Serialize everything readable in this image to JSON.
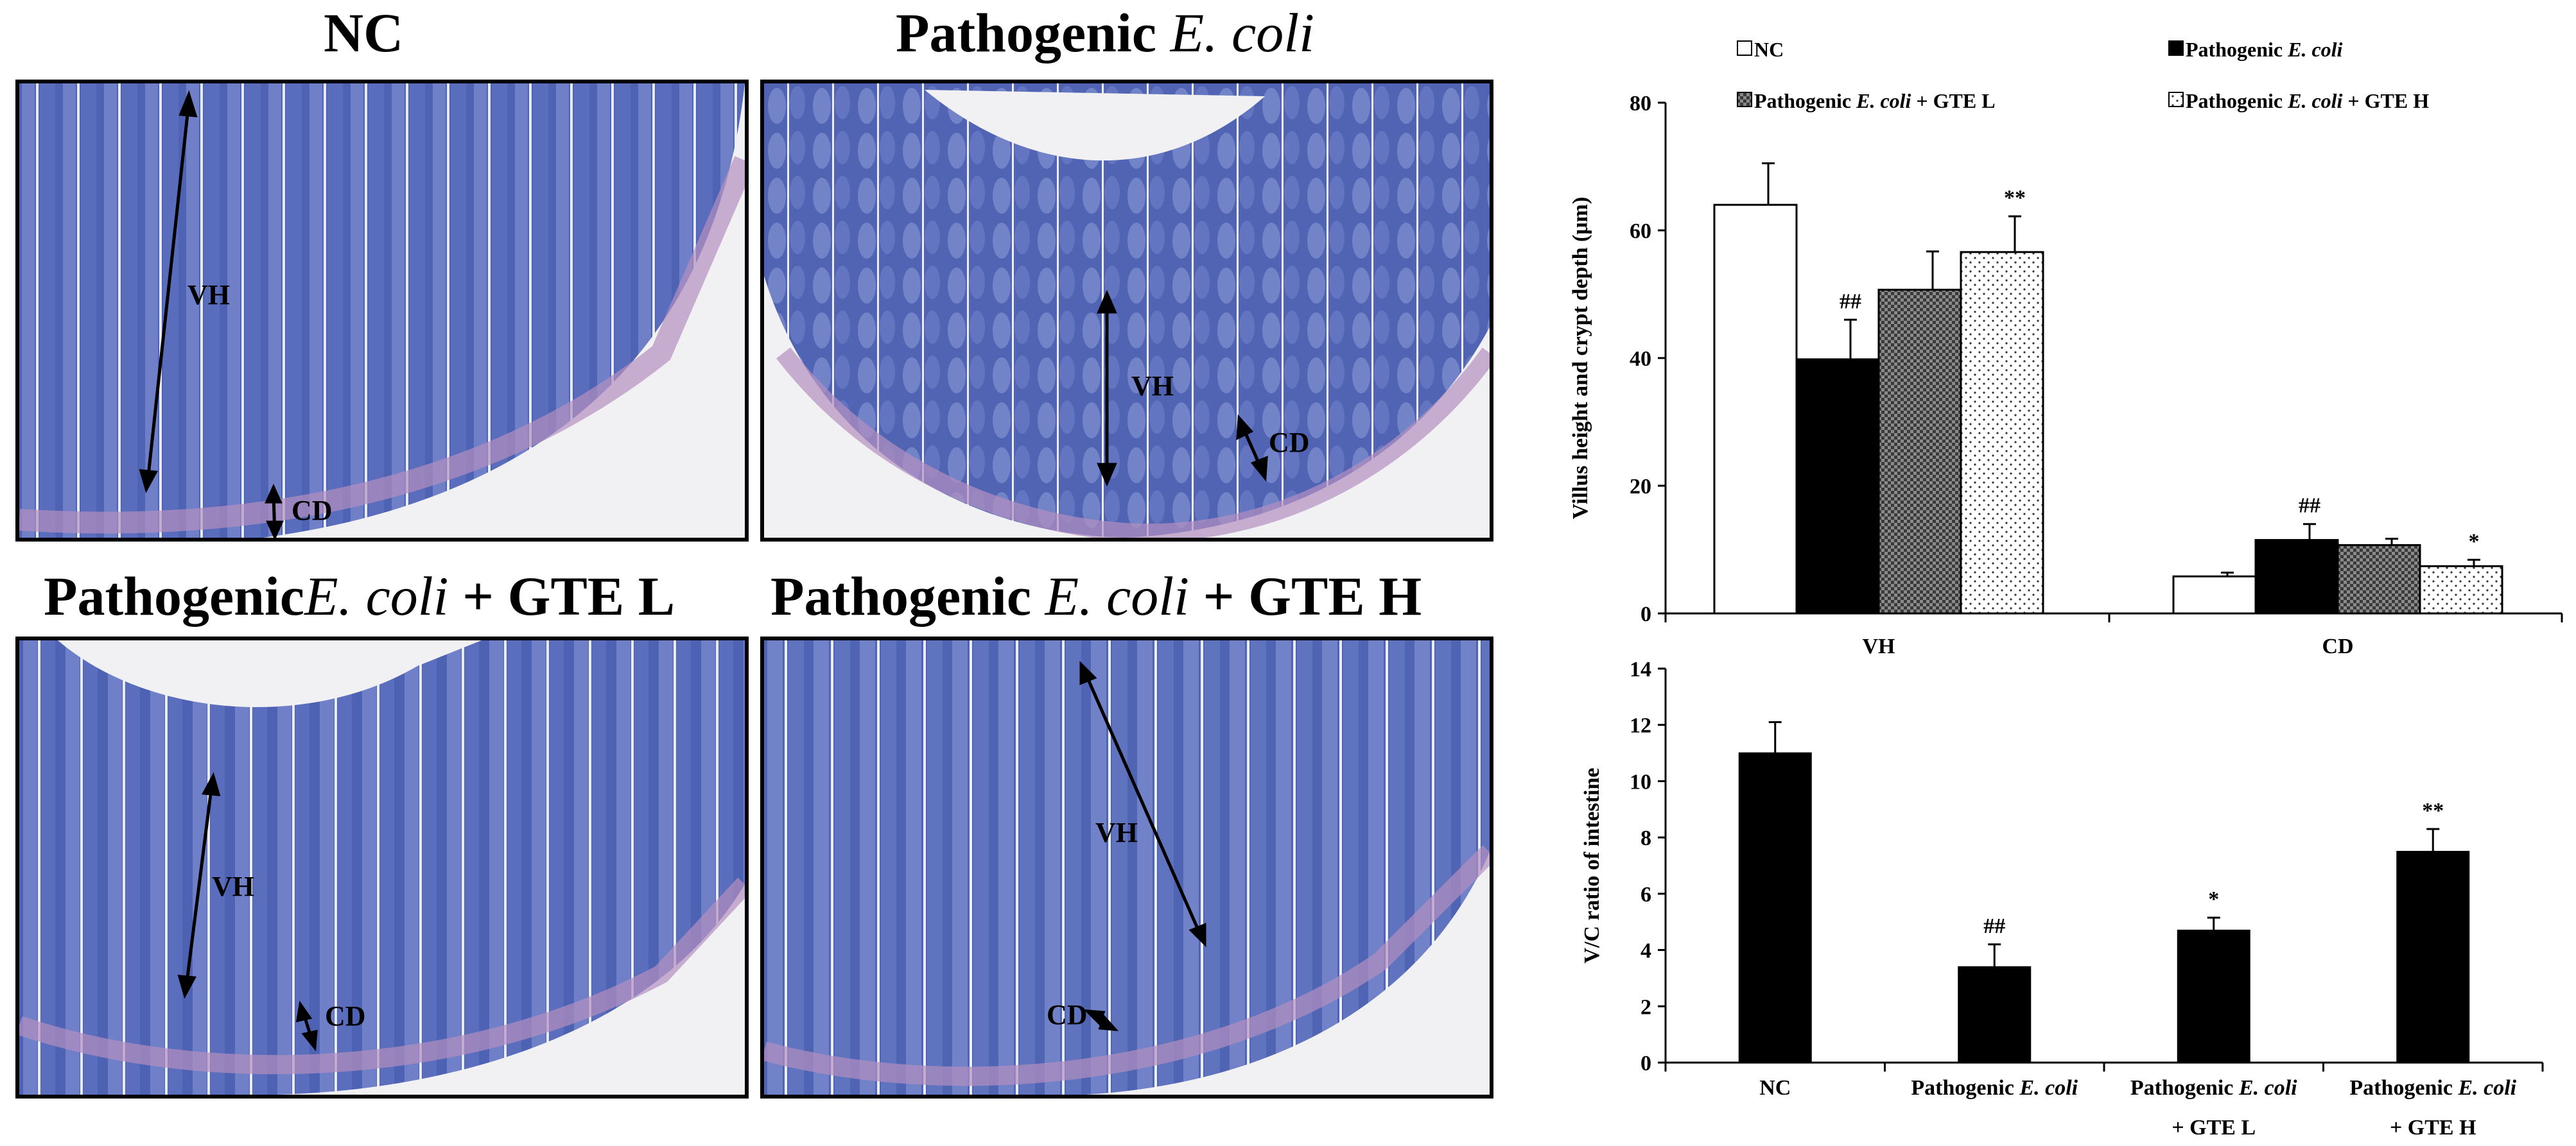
{
  "panels": [
    {
      "title_pre": "NC",
      "title_it": "",
      "title_post": ""
    },
    {
      "title_pre": "Pathogenic ",
      "title_it": "E. coli",
      "title_post": ""
    },
    {
      "title_pre": "Pathogenic",
      "title_it": "E. coli",
      "title_post": " + GTE L"
    },
    {
      "title_pre": "Pathogenic ",
      "title_it": "E. coli",
      "title_post": " + GTE H"
    }
  ],
  "labels": {
    "vh": "VH",
    "cd": "CD"
  },
  "chart_data": [
    {
      "type": "bar",
      "title": "",
      "ylabel": "Villus height and crypt depth (μm)",
      "xlabel": "",
      "ylim": [
        0,
        80
      ],
      "yticks": [
        0,
        20,
        40,
        60,
        80
      ],
      "categories": [
        "VH",
        "CD"
      ],
      "legend": [
        {
          "pre": "NC",
          "it": "",
          "post": ""
        },
        {
          "pre": "Pathogenic ",
          "it": "E. coli",
          "post": ""
        },
        {
          "pre": "Pathogenic ",
          "it": "E. coli",
          "post": " + GTE L"
        },
        {
          "pre": "Pathogenic ",
          "it": "E. coli",
          "post": " + GTE H"
        }
      ],
      "series": [
        {
          "name": "NC",
          "values": [
            64,
            5.8
          ],
          "errors": [
            6.5,
            0.6
          ],
          "annotations": [
            "",
            ""
          ],
          "pattern": "white"
        },
        {
          "name": "Pathogenic E. coli",
          "values": [
            39.8,
            11.5
          ],
          "errors": [
            6.2,
            2.5
          ],
          "annotations": [
            "##",
            "##"
          ],
          "pattern": "black"
        },
        {
          "name": "Pathogenic E. coli + GTE L",
          "values": [
            50.7,
            10.7
          ],
          "errors": [
            6.0,
            1.0
          ],
          "annotations": [
            "",
            ""
          ],
          "pattern": "checker"
        },
        {
          "name": "Pathogenic E. coli + GTE H",
          "values": [
            56.6,
            7.4
          ],
          "errors": [
            5.6,
            1.0
          ],
          "annotations": [
            "**",
            "*"
          ],
          "pattern": "dots"
        }
      ]
    },
    {
      "type": "bar",
      "title": "",
      "ylabel": "V/C ratio of intestine",
      "xlabel": "",
      "ylim": [
        0,
        14
      ],
      "yticks": [
        0,
        2,
        4,
        6,
        8,
        10,
        12,
        14
      ],
      "categories": [
        {
          "l1_pre": "NC",
          "l1_it": "",
          "l2": ""
        },
        {
          "l1_pre": "Pathogenic ",
          "l1_it": "E. coli",
          "l2": ""
        },
        {
          "l1_pre": "Pathogenic ",
          "l1_it": "E. coli",
          "l2": "+ GTE L"
        },
        {
          "l1_pre": "Pathogenic ",
          "l1_it": "E. coli",
          "l2": "+ GTE H"
        }
      ],
      "values": [
        11.0,
        3.4,
        4.7,
        7.5
      ],
      "errors": [
        1.1,
        0.8,
        0.45,
        0.8
      ],
      "annotations": [
        "",
        "##",
        "*",
        "**"
      ]
    }
  ]
}
